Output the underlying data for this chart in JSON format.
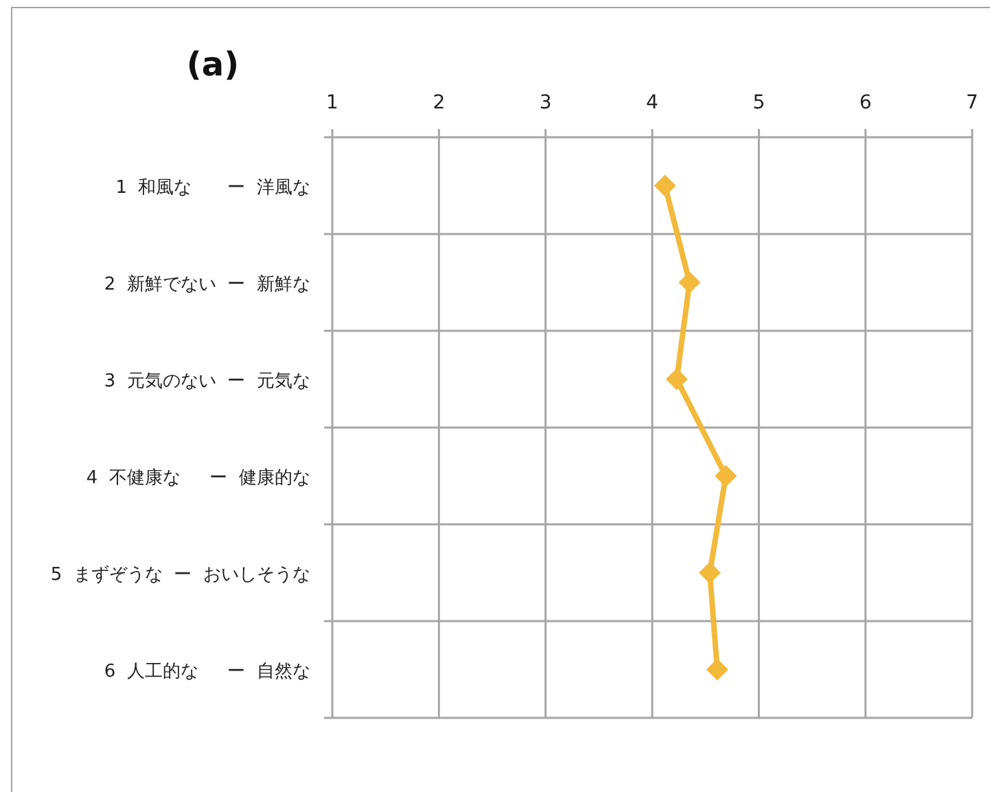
{
  "chart_data": {
    "type": "line",
    "orientation": "horizontal",
    "title": "(a)",
    "categories": [
      "1  和風な　　ー  洋風な",
      "2  新鮮でない  ー  新鮮な",
      "3  元気のない  ー  元気な",
      "4  不健康な　  ー  健康的な",
      "5  まずぞうな  ー  おいしそうな",
      "6  人工的な　  ー  自然な"
    ],
    "values": [
      4.12,
      4.35,
      4.23,
      4.69,
      4.54,
      4.61
    ],
    "color": "#f2b93b",
    "marker": "diamond",
    "grid": true,
    "xlim": [
      1,
      7
    ],
    "xticks": [
      1,
      2,
      3,
      4,
      5,
      6,
      7
    ]
  }
}
